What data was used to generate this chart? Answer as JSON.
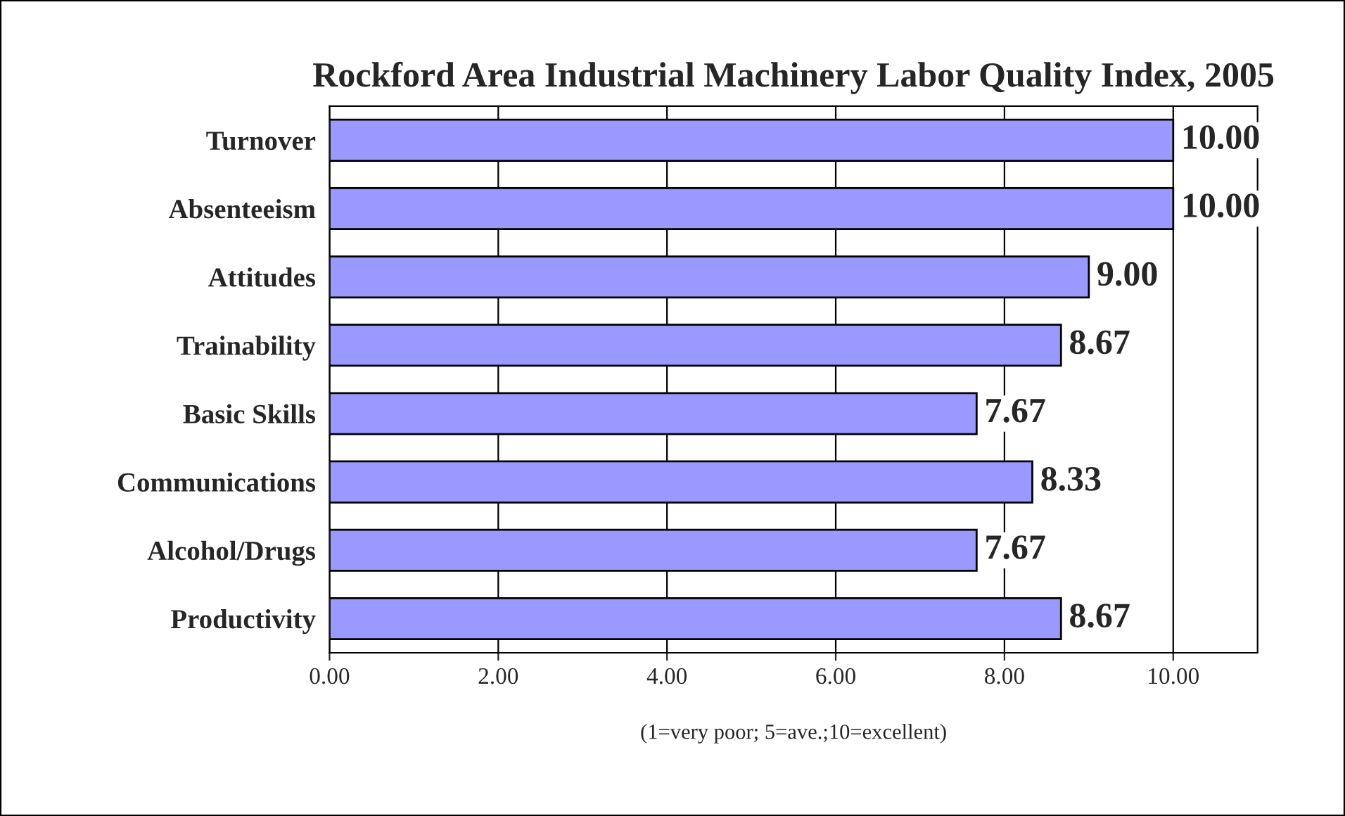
{
  "chart_data": {
    "type": "bar",
    "orientation": "horizontal",
    "title": "Rockford Area Industrial Machinery Labor Quality Index, 2005",
    "xlabel": "(1=very poor; 5=ave.;10=excellent)",
    "categories": [
      "Turnover",
      "Absenteeism",
      "Attitudes",
      "Trainability",
      "Basic Skills",
      "Communications",
      "Alcohol/Drugs",
      "Productivity"
    ],
    "values": [
      10,
      10,
      9,
      8.67,
      7.67,
      8.33,
      7.67,
      8.67
    ],
    "value_labels": [
      "10.00",
      "10.00",
      "9.00",
      "8.67",
      "7.67",
      "8.33",
      "7.67",
      "8.67"
    ],
    "color": "#9999ff",
    "xlim": [
      0,
      11
    ],
    "xticks": [
      {
        "value": 0,
        "label": "0.00"
      },
      {
        "value": 2,
        "label": "2.00"
      },
      {
        "value": 4,
        "label": "4.00"
      },
      {
        "value": 6,
        "label": "6.00"
      },
      {
        "value": 8,
        "label": "8.00"
      },
      {
        "value": 10,
        "label": "10.00"
      }
    ],
    "grid": "x",
    "legend": false
  }
}
